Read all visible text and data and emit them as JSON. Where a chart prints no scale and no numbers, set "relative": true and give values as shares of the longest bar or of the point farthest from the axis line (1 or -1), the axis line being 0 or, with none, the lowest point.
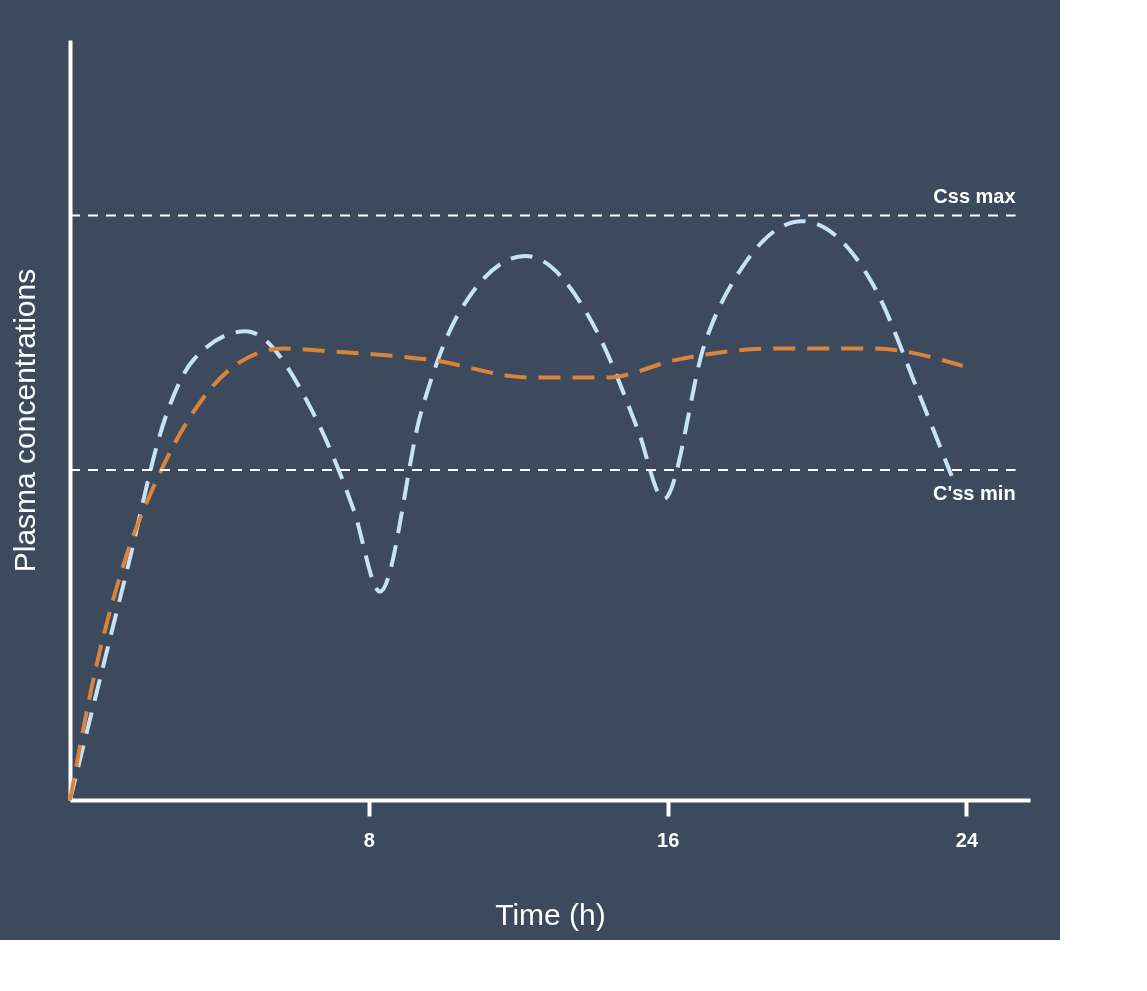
{
  "chart_data": {
    "type": "line",
    "relative": true,
    "xlabel": "Time (h)",
    "ylabel": "Plasma concentrations",
    "xlim": [
      0,
      25.7
    ],
    "xticks": [
      8,
      16,
      24
    ],
    "grid": false,
    "marker": "none",
    "line_style": "dashed",
    "series": [
      {
        "color": "#c5e3f5",
        "x": [
          0,
          1.5,
          2.55,
          3.3,
          4.7,
          6.5,
          7.6,
          8.3,
          9.4,
          10.4,
          12.2,
          14.1,
          15.2,
          15.9,
          17,
          18.1,
          19.6,
          21.5,
          22.8,
          23.6
        ],
        "values": [
          0,
          0.39,
          0.66,
          0.76,
          0.81,
          0.67,
          0.5,
          0.36,
          0.67,
          0.84,
          0.94,
          0.81,
          0.64,
          0.52,
          0.79,
          0.93,
          1.0,
          0.89,
          0.69,
          0.56
        ]
      },
      {
        "color": "#d9843a",
        "x": [
          0,
          0.7,
          1.5,
          2.3,
          3.3,
          4.4,
          5.7,
          7,
          9.7,
          12.3,
          14.4,
          16.2,
          18.9,
          21.5,
          23.9
        ],
        "values": [
          0,
          0.23,
          0.42,
          0.55,
          0.67,
          0.75,
          0.78,
          0.775,
          0.76,
          0.73,
          0.73,
          0.76,
          0.78,
          0.78,
          0.75
        ]
      }
    ],
    "ref_lines": [
      {
        "axis": "y",
        "value": 1.01,
        "label": "Css max",
        "color": "#ffffff",
        "line_style": "dashed"
      },
      {
        "axis": "y",
        "value": 0.57,
        "label": "C'ss min",
        "color": "#ffffff",
        "line_style": "dashed"
      }
    ]
  }
}
